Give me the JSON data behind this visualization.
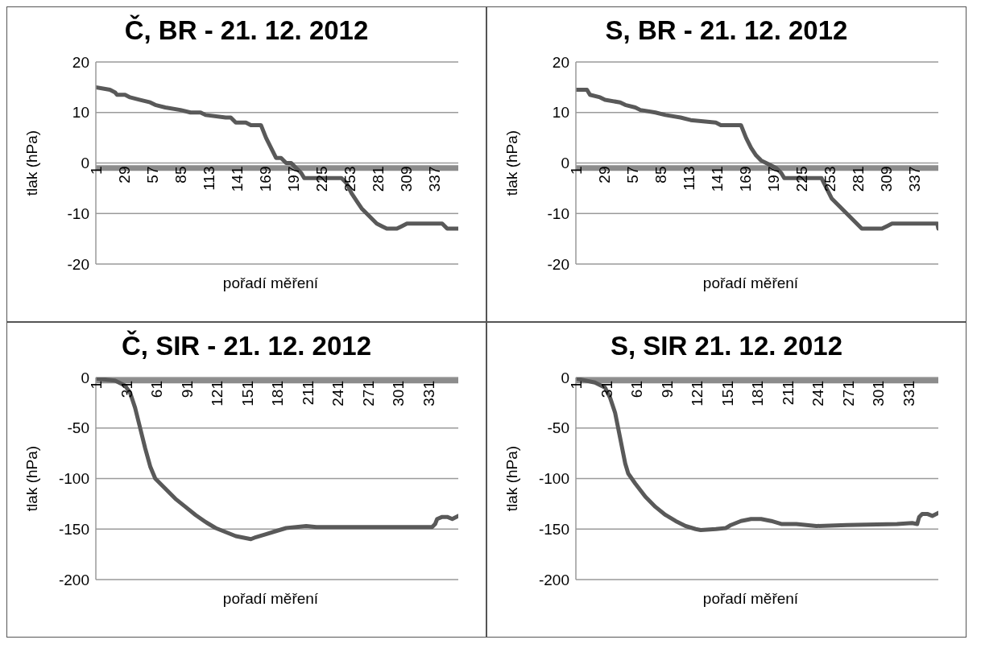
{
  "chart_data": [
    {
      "type": "line",
      "title": "Č, BR - 21. 12. 2012",
      "xlabel": "pořadí měření",
      "ylabel": "tlak (hPa)",
      "xlim": [
        1,
        361
      ],
      "xticks": [
        1,
        29,
        57,
        85,
        113,
        141,
        169,
        197,
        225,
        253,
        281,
        309,
        337
      ],
      "ylim": [
        -20,
        20
      ],
      "yticks": [
        -20,
        -10,
        0,
        10,
        20
      ],
      "grid": "y",
      "series": [
        {
          "color": "#8c8c8c",
          "x": [
            1,
            361
          ],
          "values": [
            -1,
            -1
          ]
        },
        {
          "color": "#595959",
          "x": [
            1,
            15,
            20,
            22,
            30,
            35,
            45,
            55,
            60,
            70,
            85,
            95,
            105,
            110,
            130,
            135,
            140,
            150,
            155,
            165,
            170,
            175,
            180,
            185,
            190,
            195,
            200,
            205,
            208,
            245,
            250,
            255,
            260,
            265,
            270,
            275,
            280,
            285,
            290,
            300,
            305,
            310,
            345,
            350,
            361
          ],
          "values": [
            15,
            14.5,
            14,
            13.5,
            13.5,
            13,
            12.5,
            12,
            11.5,
            11,
            10.5,
            10,
            10,
            9.5,
            9,
            9,
            8,
            8,
            7.5,
            7.5,
            5,
            3,
            1,
            1,
            0,
            0,
            -1,
            -2,
            -3,
            -3,
            -4,
            -6,
            -7.5,
            -9,
            -10,
            -11,
            -12,
            -12.5,
            -13,
            -13,
            -12.5,
            -12,
            -12,
            -13,
            -13
          ]
        }
      ]
    },
    {
      "type": "line",
      "title": "S, BR - 21. 12. 2012",
      "xlabel": "pořadí měření",
      "ylabel": "tlak (hPa)",
      "xlim": [
        1,
        361
      ],
      "xticks": [
        1,
        29,
        57,
        85,
        113,
        141,
        169,
        197,
        225,
        253,
        281,
        309,
        337
      ],
      "ylim": [
        -20,
        20
      ],
      "yticks": [
        -20,
        -10,
        0,
        10,
        20
      ],
      "grid": "y",
      "series": [
        {
          "color": "#8c8c8c",
          "x": [
            1,
            361
          ],
          "values": [
            -1,
            -1
          ]
        },
        {
          "color": "#595959",
          "x": [
            1,
            12,
            15,
            25,
            30,
            45,
            50,
            60,
            65,
            80,
            90,
            105,
            115,
            140,
            145,
            165,
            170,
            175,
            180,
            185,
            190,
            200,
            205,
            208,
            245,
            250,
            255,
            260,
            265,
            270,
            275,
            280,
            285,
            305,
            310,
            315,
            360,
            361
          ],
          "values": [
            14.5,
            14.5,
            13.5,
            13,
            12.5,
            12,
            11.5,
            11,
            10.5,
            10,
            9.5,
            9,
            8.5,
            8,
            7.5,
            7.5,
            5,
            3,
            1.5,
            0.5,
            0,
            -1,
            -2,
            -3,
            -3,
            -5,
            -7,
            -8,
            -9,
            -10,
            -11,
            -12,
            -13,
            -13,
            -12.5,
            -12,
            -12,
            -13
          ]
        }
      ]
    },
    {
      "type": "line",
      "title": "Č, SIR - 21. 12. 2012",
      "xlabel": "pořadí měření",
      "ylabel": "tlak (hPa)",
      "xlim": [
        1,
        361
      ],
      "xticks": [
        1,
        31,
        61,
        91,
        121,
        151,
        181,
        211,
        241,
        271,
        301,
        331
      ],
      "ylim": [
        -200,
        0
      ],
      "yticks": [
        -200,
        -150,
        -100,
        -50,
        0
      ],
      "grid": "y",
      "series": [
        {
          "color": "#8c8c8c",
          "x": [
            1,
            361
          ],
          "values": [
            -3,
            -3
          ]
        },
        {
          "color": "#595959",
          "x": [
            1,
            20,
            30,
            35,
            40,
            45,
            50,
            55,
            60,
            70,
            80,
            90,
            100,
            110,
            120,
            130,
            140,
            150,
            155,
            160,
            170,
            180,
            190,
            200,
            210,
            220,
            240,
            300,
            335,
            338,
            340,
            345,
            350,
            355,
            361
          ],
          "values": [
            -1,
            -3,
            -8,
            -15,
            -30,
            -50,
            -70,
            -88,
            -100,
            -110,
            -120,
            -128,
            -136,
            -143,
            -149,
            -153,
            -157,
            -159,
            -160,
            -158,
            -155,
            -152,
            -149,
            -148,
            -147,
            -148,
            -148,
            -148,
            -148,
            -145,
            -140,
            -138,
            -138,
            -140,
            -137
          ]
        }
      ]
    },
    {
      "type": "line",
      "title": "S, SIR 21. 12. 2012",
      "xlabel": "pořadí měření",
      "ylabel": "tlak (hPa)",
      "xlim": [
        1,
        361
      ],
      "xticks": [
        1,
        31,
        61,
        91,
        121,
        151,
        181,
        211,
        241,
        271,
        301,
        331
      ],
      "ylim": [
        -200,
        0
      ],
      "yticks": [
        -200,
        -150,
        -100,
        -50,
        0
      ],
      "grid": "y",
      "series": [
        {
          "color": "#8c8c8c",
          "x": [
            1,
            361
          ],
          "values": [
            -3,
            -3
          ]
        },
        {
          "color": "#595959",
          "x": [
            1,
            20,
            30,
            35,
            40,
            45,
            50,
            53,
            60,
            70,
            80,
            90,
            100,
            110,
            120,
            125,
            140,
            150,
            155,
            165,
            175,
            185,
            195,
            205,
            220,
            240,
            270,
            320,
            335,
            340,
            342,
            345,
            350,
            355,
            361
          ],
          "values": [
            -1,
            -5,
            -10,
            -20,
            -35,
            -60,
            -85,
            -95,
            -105,
            -118,
            -128,
            -136,
            -142,
            -147,
            -150,
            -151,
            -150,
            -149,
            -146,
            -142,
            -140,
            -140,
            -142,
            -145,
            -145,
            -147,
            -146,
            -145,
            -144,
            -145,
            -138,
            -135,
            -135,
            -137,
            -134
          ]
        }
      ]
    }
  ]
}
